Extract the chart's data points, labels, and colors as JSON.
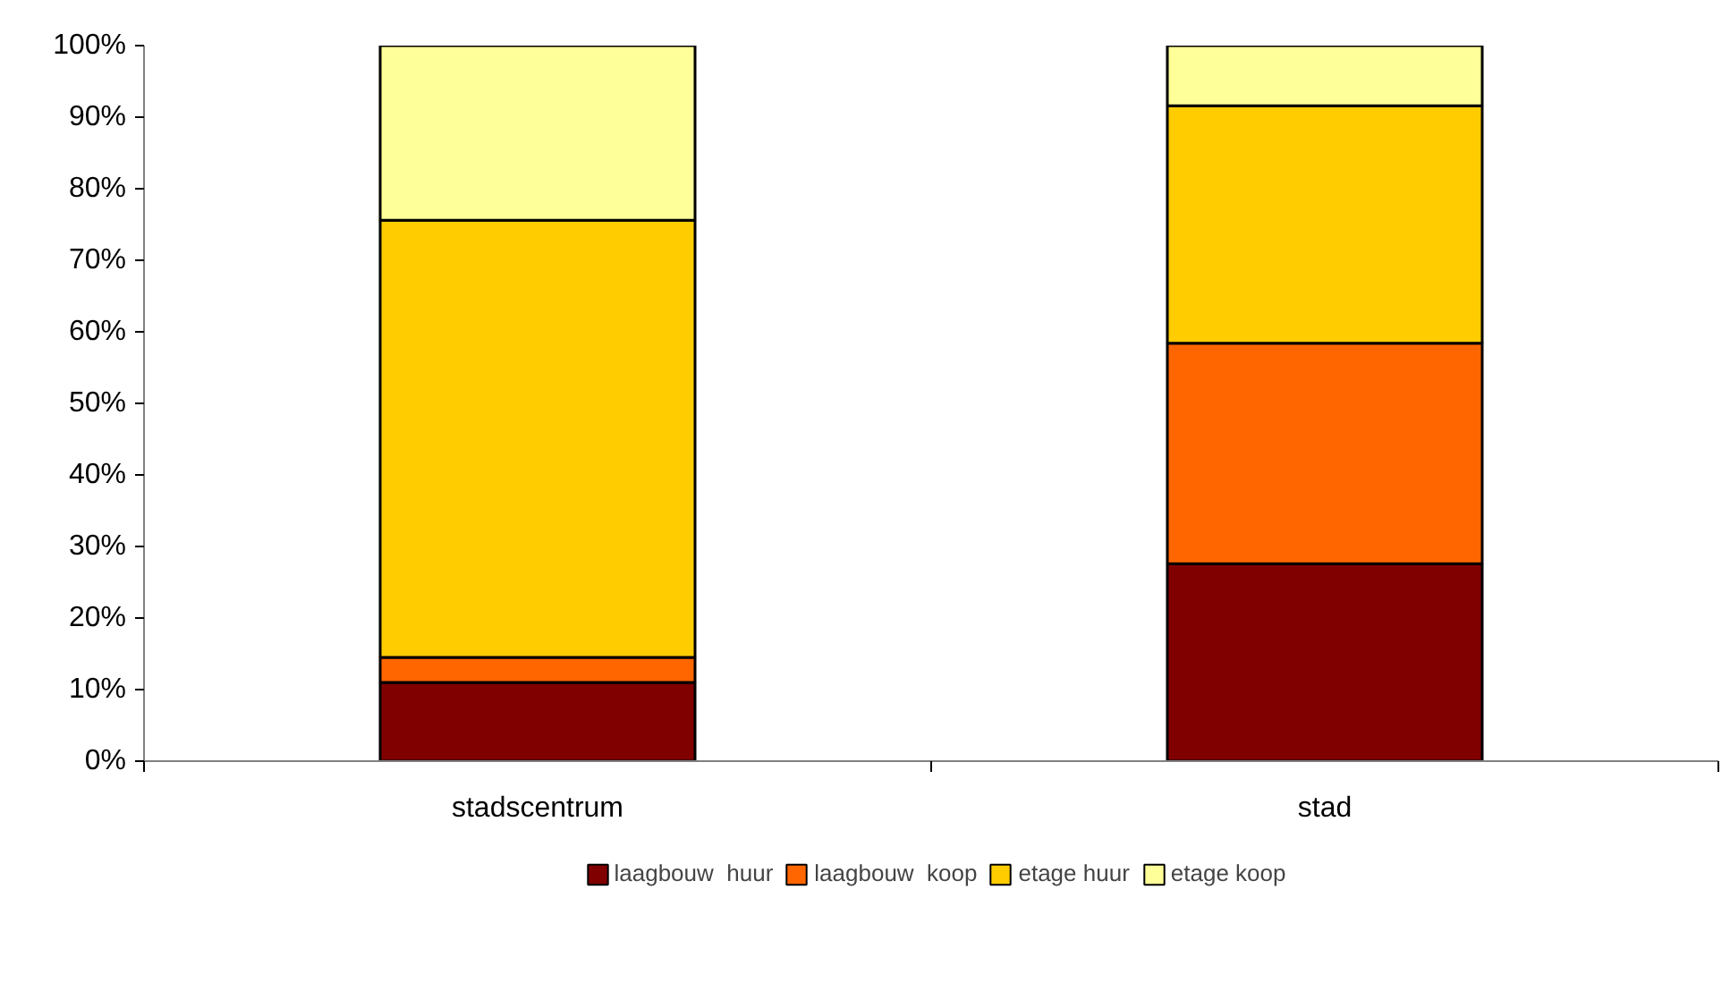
{
  "chart_data": {
    "type": "bar",
    "stacked": true,
    "categories": [
      "stadscentrum",
      "stad"
    ],
    "series": [
      {
        "name": "laagbouw  huur",
        "color": "#800000",
        "values": [
          11,
          27.6
        ]
      },
      {
        "name": "laagbouw  koop",
        "color": "#ff6600",
        "values": [
          3.5,
          30.8
        ]
      },
      {
        "name": "etage huur",
        "color": "#ffcc00",
        "values": [
          61.1,
          33.2
        ]
      },
      {
        "name": "etage koop",
        "color": "#ffff99",
        "values": [
          24.4,
          8.4
        ]
      }
    ],
    "ylim": [
      0,
      100
    ],
    "yticks": [
      {
        "value": 0,
        "label": "0%"
      },
      {
        "value": 10,
        "label": "10%"
      },
      {
        "value": 20,
        "label": "20%"
      },
      {
        "value": 30,
        "label": "30%"
      },
      {
        "value": 40,
        "label": "40%"
      },
      {
        "value": 50,
        "label": "50%"
      },
      {
        "value": 60,
        "label": "60%"
      },
      {
        "value": 70,
        "label": "70%"
      },
      {
        "value": 80,
        "label": "80%"
      },
      {
        "value": 90,
        "label": "90%"
      },
      {
        "value": 100,
        "label": "100%"
      }
    ],
    "grid": false,
    "legend": "bottom"
  }
}
